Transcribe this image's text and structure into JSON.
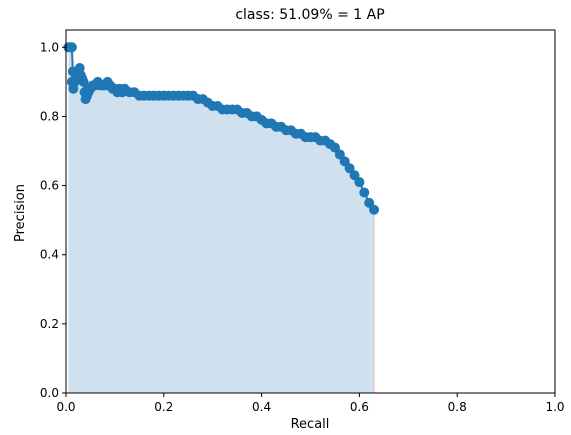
{
  "chart_data": {
    "type": "area",
    "title": "class: 51.09% = 1 AP",
    "xlabel": "Recall",
    "ylabel": "Precision",
    "xlim": [
      0.0,
      1.0
    ],
    "ylim": [
      0.0,
      1.05
    ],
    "xticks": [
      0.0,
      0.2,
      0.4,
      0.6,
      0.8,
      1.0
    ],
    "yticks": [
      0.0,
      0.2,
      0.4,
      0.6,
      0.8,
      1.0
    ],
    "tick_labels_x": [
      "0.0",
      "0.2",
      "0.4",
      "0.6",
      "0.8",
      "1.0"
    ],
    "tick_labels_y": [
      "0.0",
      "0.2",
      "0.4",
      "0.6",
      "0.8",
      "1.0"
    ],
    "grid": false,
    "series": [
      {
        "line_color": "#1f77b4",
        "fill_color": "#cfe0ef",
        "x": [
          0.005,
          0.01,
          0.012,
          0.014,
          0.012,
          0.015,
          0.018,
          0.02,
          0.022,
          0.025,
          0.028,
          0.03,
          0.033,
          0.036,
          0.038,
          0.04,
          0.043,
          0.046,
          0.048,
          0.05,
          0.055,
          0.06,
          0.065,
          0.07,
          0.075,
          0.08,
          0.085,
          0.09,
          0.095,
          0.1,
          0.105,
          0.11,
          0.115,
          0.12,
          0.13,
          0.14,
          0.15,
          0.16,
          0.17,
          0.18,
          0.19,
          0.2,
          0.21,
          0.22,
          0.23,
          0.24,
          0.25,
          0.26,
          0.27,
          0.28,
          0.29,
          0.3,
          0.31,
          0.32,
          0.33,
          0.34,
          0.35,
          0.36,
          0.37,
          0.38,
          0.39,
          0.4,
          0.41,
          0.42,
          0.43,
          0.44,
          0.45,
          0.46,
          0.47,
          0.48,
          0.49,
          0.5,
          0.51,
          0.52,
          0.53,
          0.54,
          0.55,
          0.56,
          0.57,
          0.58,
          0.59,
          0.6,
          0.61,
          0.62,
          0.63
        ],
        "y": [
          1.0,
          1.0,
          1.0,
          0.93,
          0.9,
          0.88,
          0.9,
          0.92,
          0.91,
          0.93,
          0.94,
          0.92,
          0.91,
          0.9,
          0.87,
          0.85,
          0.86,
          0.87,
          0.88,
          0.88,
          0.89,
          0.89,
          0.9,
          0.89,
          0.89,
          0.89,
          0.9,
          0.89,
          0.88,
          0.88,
          0.87,
          0.88,
          0.87,
          0.88,
          0.87,
          0.87,
          0.86,
          0.86,
          0.86,
          0.86,
          0.86,
          0.86,
          0.86,
          0.86,
          0.86,
          0.86,
          0.86,
          0.86,
          0.85,
          0.85,
          0.84,
          0.83,
          0.83,
          0.82,
          0.82,
          0.82,
          0.82,
          0.81,
          0.81,
          0.8,
          0.8,
          0.79,
          0.78,
          0.78,
          0.77,
          0.77,
          0.76,
          0.76,
          0.75,
          0.75,
          0.74,
          0.74,
          0.74,
          0.73,
          0.73,
          0.72,
          0.71,
          0.69,
          0.67,
          0.65,
          0.63,
          0.61,
          0.58,
          0.55,
          0.53
        ]
      }
    ]
  }
}
